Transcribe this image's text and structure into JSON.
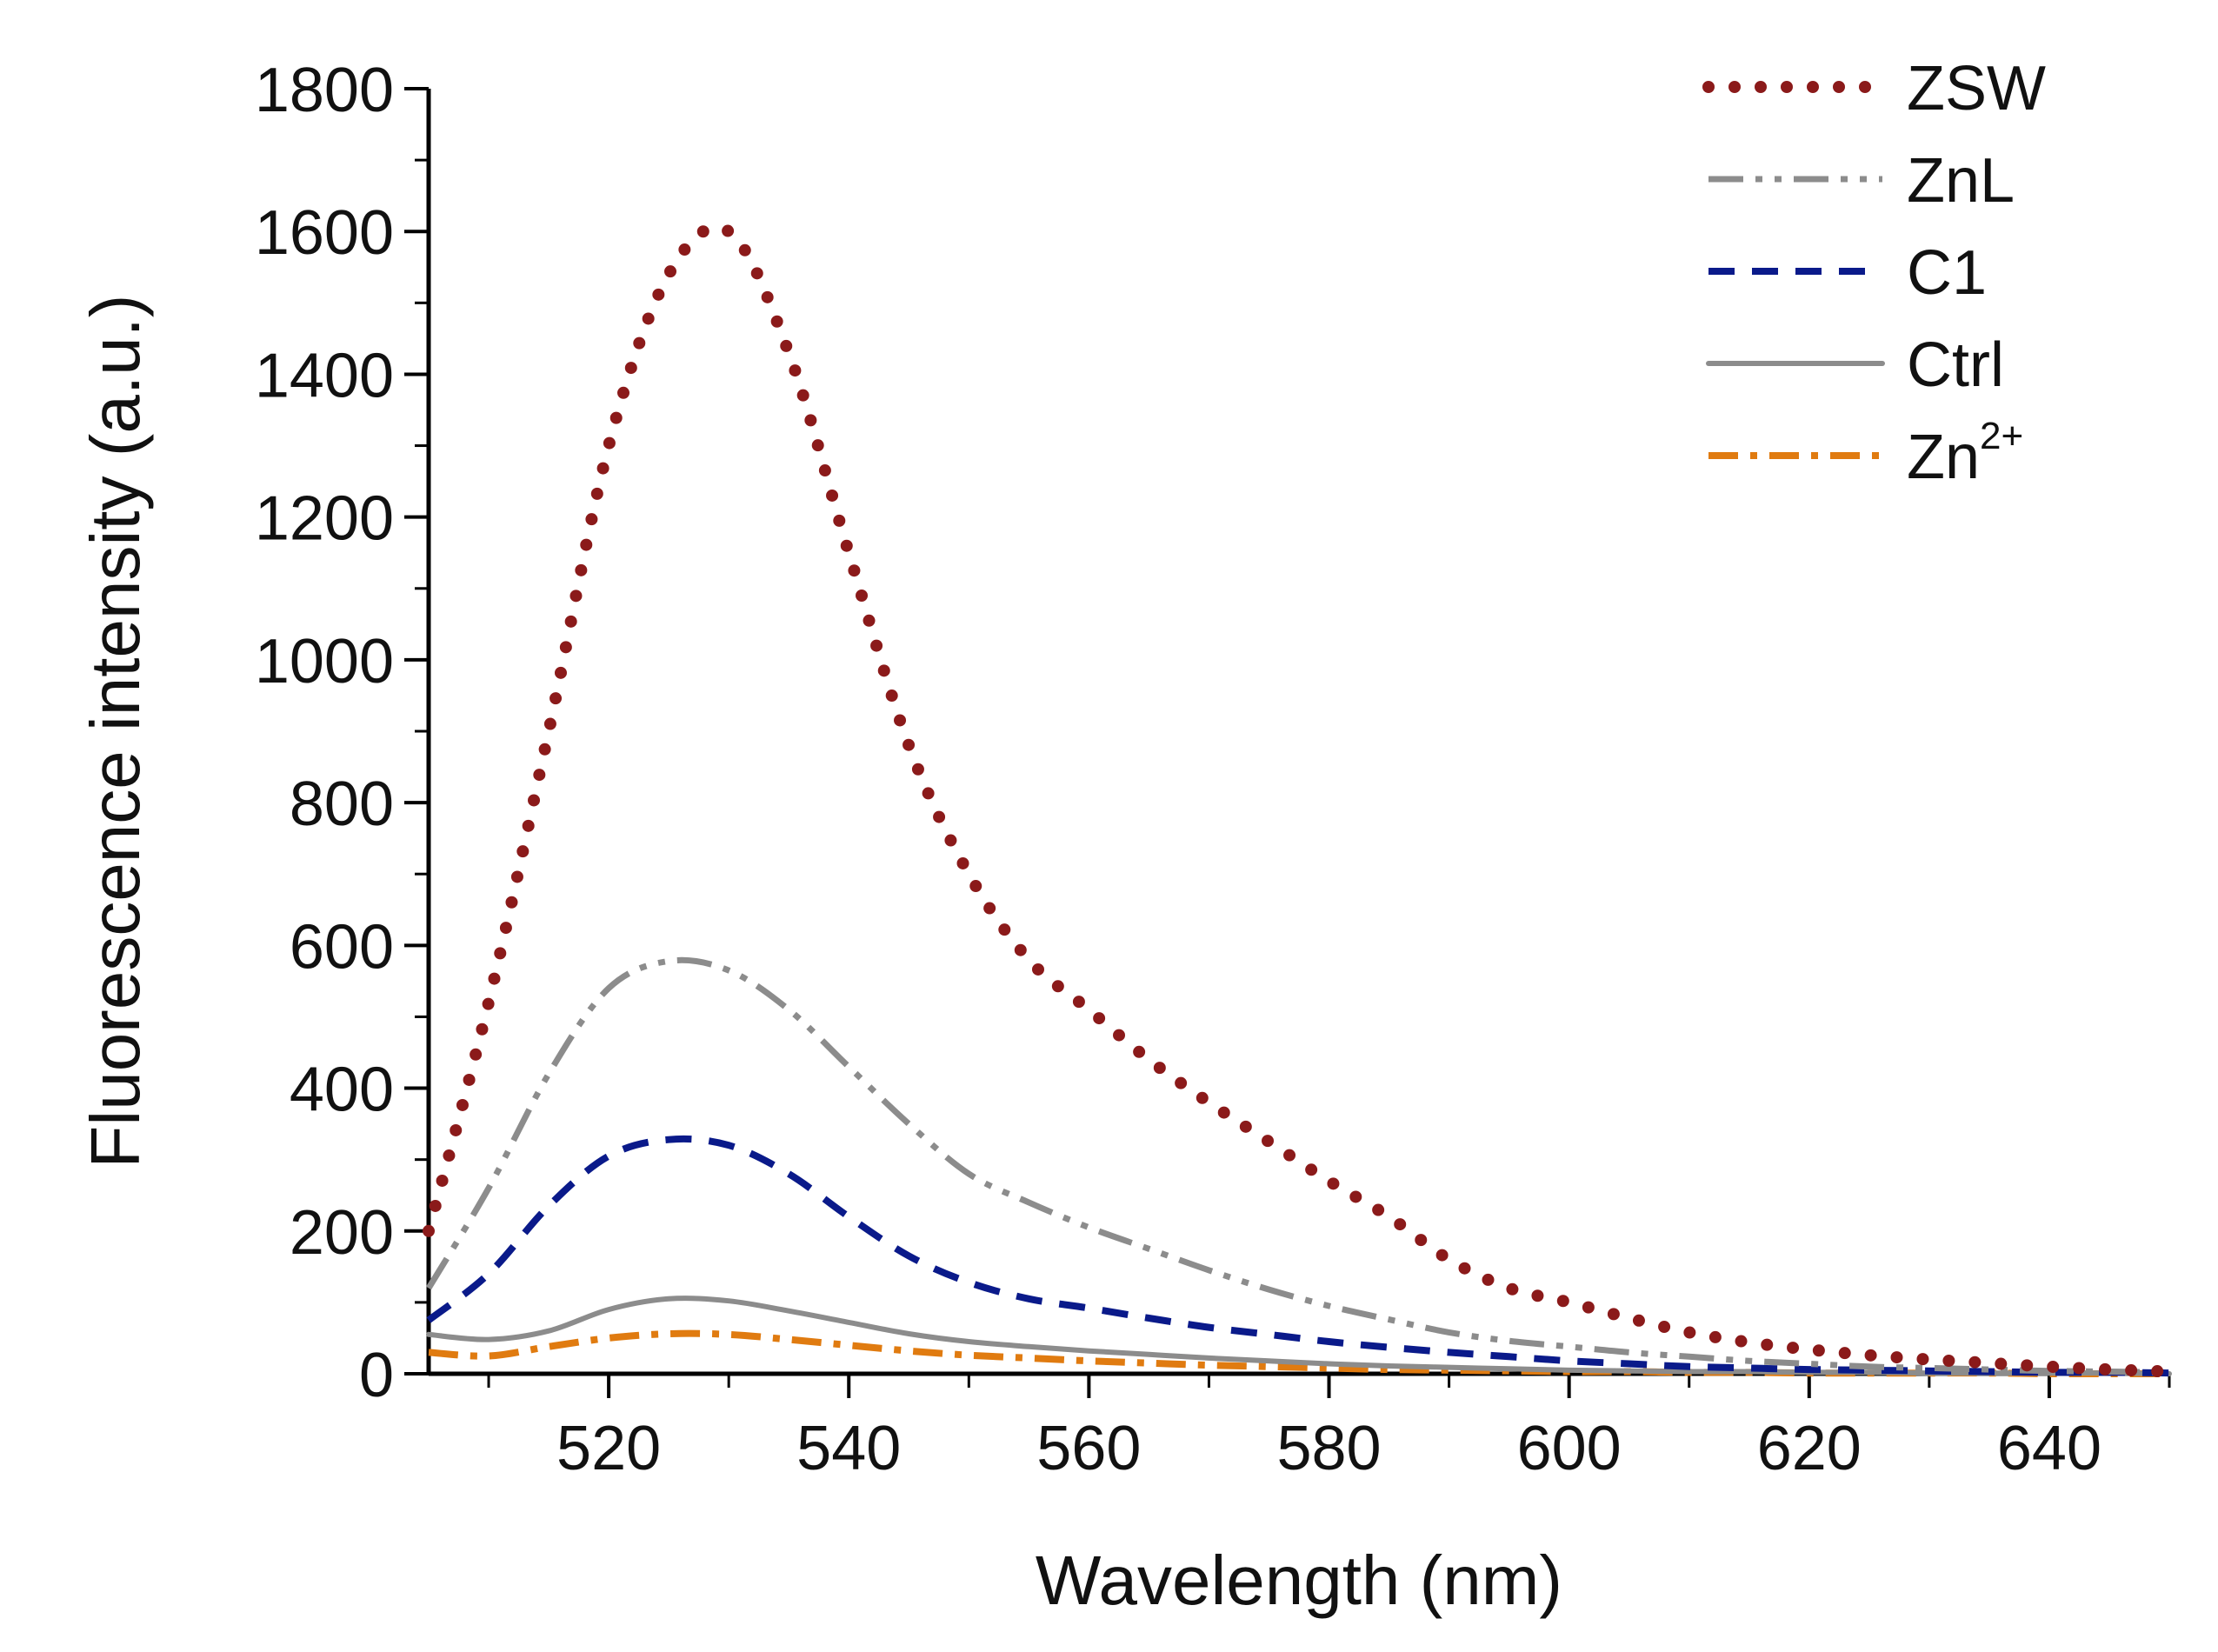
{
  "chart_data": {
    "type": "line",
    "title": "",
    "xlabel": "Wavelength (nm)",
    "ylabel": "Fluorescence intensity (a.u.)",
    "xlim": [
      505,
      650
    ],
    "ylim": [
      0,
      1800
    ],
    "x_ticks": [
      520,
      540,
      560,
      580,
      600,
      620,
      640
    ],
    "x_tick_labels": [
      "520",
      "540",
      "560",
      "580",
      "600",
      "620",
      "640"
    ],
    "y_ticks": [
      0,
      200,
      400,
      600,
      800,
      1000,
      1200,
      1400,
      1600,
      1800
    ],
    "y_tick_labels": [
      "0",
      "200",
      "400",
      "600",
      "800",
      "1000",
      "1200",
      "1400",
      "1600",
      "1800"
    ],
    "grid": false,
    "legend_position": "top-right",
    "x": [
      505,
      510,
      515,
      520,
      525,
      530,
      535,
      540,
      545,
      550,
      555,
      560,
      565,
      570,
      575,
      580,
      585,
      590,
      595,
      600,
      605,
      610,
      615,
      620,
      625,
      630,
      635,
      640,
      645,
      650
    ],
    "series": [
      {
        "name": "ZSW",
        "label_base": "ZSW",
        "label_sup": "",
        "color": "#8b1a1a",
        "style": "dotted",
        "values": [
          200,
          520,
          900,
          1300,
          1540,
          1600,
          1430,
          1150,
          880,
          700,
          580,
          510,
          440,
          380,
          325,
          270,
          220,
          160,
          120,
          100,
          78,
          58,
          44,
          34,
          26,
          20,
          15,
          10,
          6,
          3
        ]
      },
      {
        "name": "ZnL",
        "label_base": "ZnL",
        "label_sup": "",
        "color": "#8c8c8c",
        "style": "dash-dot-dot",
        "values": [
          120,
          260,
          420,
          540,
          578,
          565,
          510,
          430,
          350,
          280,
          240,
          205,
          175,
          145,
          118,
          95,
          76,
          58,
          46,
          38,
          30,
          24,
          18,
          14,
          10,
          8,
          6,
          4,
          3,
          2
        ]
      },
      {
        "name": "C1",
        "label_base": "C1",
        "label_sup": "",
        "color": "#0a1a8a",
        "style": "dashed",
        "values": [
          75,
          140,
          235,
          305,
          328,
          320,
          280,
          220,
          165,
          128,
          105,
          92,
          78,
          65,
          55,
          45,
          37,
          30,
          24,
          18,
          14,
          10,
          8,
          6,
          5,
          4,
          3,
          2,
          2,
          1
        ]
      },
      {
        "name": "Ctrl",
        "label_base": "Ctrl",
        "label_sup": "",
        "color": "#8c8c8c",
        "style": "solid",
        "values": [
          55,
          48,
          60,
          90,
          105,
          102,
          88,
          72,
          56,
          45,
          38,
          32,
          27,
          22,
          18,
          14,
          11,
          9,
          7,
          5,
          4,
          3,
          3,
          2,
          2,
          1,
          1,
          1,
          1,
          0
        ]
      },
      {
        "name": "Zn2+",
        "label_base": "Zn",
        "label_sup": "2+",
        "color": "#e07b10",
        "style": "dash-dot",
        "values": [
          30,
          25,
          38,
          50,
          56,
          55,
          48,
          40,
          32,
          26,
          22,
          18,
          15,
          12,
          10,
          8,
          6,
          5,
          4,
          3,
          3,
          2,
          2,
          1,
          1,
          1,
          1,
          0,
          0,
          0
        ]
      }
    ]
  }
}
